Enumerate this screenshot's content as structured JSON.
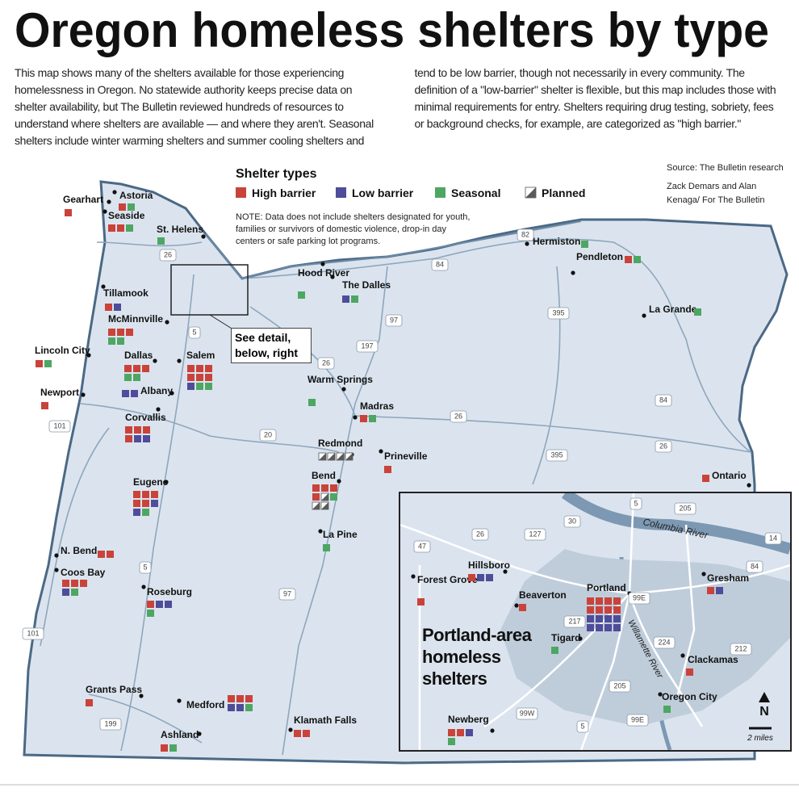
{
  "header": {
    "title": "Oregon homeless shelters by type",
    "intro": "This map shows many of the shelters available for those experiencing homelessness in Oregon. No statewide authority keeps precise data on shelter availability, but The Bulletin reviewed hundreds of resources to understand where shelters are available — and where they aren't. Seasonal shelters include winter warming shelters and summer cooling shelters and tend to be low barrier, though not necessarily in every community. The definition of a \"low-barrier\" shelter is flexible, but this map includes those with minimal requirements for entry. Shelters requiring drug testing, sobriety, fees or background checks, for example, are categorized as \"high barrier.\""
  },
  "source": "Source: The Bulletin research",
  "credit": "Zack Demars and Alan Kenaga/ For The Bulletin",
  "legend": {
    "title": "Shelter types",
    "items": [
      {
        "label": "High barrier",
        "color": "#c9433b"
      },
      {
        "label": "Low barrier",
        "color": "#4f4c9a"
      },
      {
        "label": "Seasonal",
        "color": "#4ea663"
      },
      {
        "label": "Planned",
        "color": "#5a5a5a"
      }
    ],
    "note": "NOTE: Data does not include shelters designated for youth, families or survivors of domestic violence, drop-in day centers or safe parking lot programs."
  },
  "callout": "See detail, below, right",
  "cities": [
    {
      "name": "Gearhart",
      "shelters": [
        "High barrier"
      ]
    },
    {
      "name": "Astoria",
      "shelters": [
        "High barrier",
        "Seasonal"
      ]
    },
    {
      "name": "Seaside",
      "shelters": [
        "High barrier",
        "High barrier",
        "Seasonal"
      ]
    },
    {
      "name": "St. Helens",
      "shelters": [
        "Seasonal"
      ]
    },
    {
      "name": "Tillamook",
      "shelters": [
        "High barrier",
        "Low barrier"
      ]
    },
    {
      "name": "McMinnville",
      "shelters": [
        "High barrier",
        "High barrier",
        "High barrier",
        "Seasonal",
        "Seasonal"
      ]
    },
    {
      "name": "Lincoln City",
      "shelters": [
        "High barrier",
        "Seasonal"
      ]
    },
    {
      "name": "Dallas",
      "shelters": [
        "High barrier",
        "High barrier",
        "High barrier",
        "Seasonal",
        "Seasonal"
      ]
    },
    {
      "name": "Salem",
      "shelters": [
        "High barrier",
        "High barrier",
        "High barrier",
        "High barrier",
        "High barrier",
        "High barrier",
        "Low barrier",
        "Seasonal",
        "Seasonal"
      ]
    },
    {
      "name": "Newport",
      "shelters": [
        "High barrier"
      ]
    },
    {
      "name": "Albany",
      "shelters": [
        "Low barrier",
        "Low barrier"
      ]
    },
    {
      "name": "Corvallis",
      "shelters": [
        "High barrier",
        "High barrier",
        "High barrier",
        "High barrier",
        "Low barrier",
        "Low barrier"
      ]
    },
    {
      "name": "Eugene",
      "shelters": [
        "High barrier",
        "High barrier",
        "High barrier",
        "High barrier",
        "High barrier",
        "Low barrier",
        "Low barrier",
        "Seasonal"
      ]
    },
    {
      "name": "N. Bend",
      "shelters": [
        "High barrier",
        "High barrier"
      ]
    },
    {
      "name": "Coos Bay",
      "shelters": [
        "High barrier",
        "High barrier",
        "High barrier",
        "Low barrier",
        "Seasonal"
      ]
    },
    {
      "name": "Roseburg",
      "shelters": [
        "High barrier",
        "Low barrier",
        "Low barrier",
        "Seasonal"
      ]
    },
    {
      "name": "Grants Pass",
      "shelters": [
        "High barrier"
      ]
    },
    {
      "name": "Medford",
      "shelters": [
        "High barrier",
        "High barrier",
        "High barrier",
        "Low barrier",
        "Low barrier",
        "Seasonal"
      ]
    },
    {
      "name": "Ashland",
      "shelters": [
        "High barrier",
        "Seasonal"
      ]
    },
    {
      "name": "Klamath Falls",
      "shelters": [
        "High barrier",
        "High barrier"
      ]
    },
    {
      "name": "Hood River",
      "shelters": [
        "Seasonal"
      ]
    },
    {
      "name": "The Dalles",
      "shelters": [
        "Low barrier",
        "Seasonal"
      ]
    },
    {
      "name": "Hermiston",
      "shelters": [
        "Seasonal"
      ]
    },
    {
      "name": "Pendleton",
      "shelters": [
        "High barrier",
        "Seasonal"
      ]
    },
    {
      "name": "La Grande",
      "shelters": [
        "Seasonal"
      ]
    },
    {
      "name": "Warm Springs",
      "shelters": [
        "Seasonal"
      ]
    },
    {
      "name": "Madras",
      "shelters": [
        "High barrier",
        "Seasonal"
      ]
    },
    {
      "name": "Redmond",
      "shelters": [
        "Planned",
        "Planned",
        "Planned",
        "Planned"
      ]
    },
    {
      "name": "Bend",
      "shelters": [
        "High barrier",
        "High barrier",
        "High barrier",
        "High barrier",
        "Planned",
        "Seasonal",
        "Planned",
        "Planned"
      ]
    },
    {
      "name": "Prineville",
      "shelters": [
        "High barrier"
      ]
    },
    {
      "name": "La Pine",
      "shelters": [
        "Seasonal"
      ]
    },
    {
      "name": "Ontario",
      "shelters": [
        "High barrier"
      ]
    }
  ],
  "inset": {
    "title": "Portland-area homeless shelters",
    "north": "N",
    "scale": "2 miles",
    "rivers": [
      "Columbia River",
      "Willamette River"
    ],
    "cities": [
      {
        "name": "Forest Grove",
        "shelters": [
          "High barrier"
        ]
      },
      {
        "name": "Hillsboro",
        "shelters": [
          "High barrier",
          "Low barrier",
          "Low barrier"
        ]
      },
      {
        "name": "Beaverton",
        "shelters": [
          "High barrier"
        ]
      },
      {
        "name": "Portland",
        "shelters": [
          "High barrier",
          "High barrier",
          "High barrier",
          "High barrier",
          "High barrier",
          "High barrier",
          "High barrier",
          "High barrier",
          "Low barrier",
          "Low barrier",
          "Low barrier",
          "Low barrier",
          "Low barrier",
          "Low barrier",
          "Low barrier",
          "Low barrier"
        ]
      },
      {
        "name": "Tigard",
        "shelters": [
          "Seasonal"
        ]
      },
      {
        "name": "Gresham",
        "shelters": [
          "High barrier",
          "Low barrier"
        ]
      },
      {
        "name": "Clackamas",
        "shelters": [
          "High barrier"
        ]
      },
      {
        "name": "Oregon City",
        "shelters": [
          "Seasonal"
        ]
      },
      {
        "name": "Newberg",
        "shelters": [
          "High barrier",
          "High barrier",
          "Low barrier",
          "Seasonal"
        ]
      }
    ],
    "highways": [
      "5",
      "205",
      "30",
      "14",
      "84",
      "26",
      "47",
      "127",
      "217",
      "99E",
      "224",
      "212",
      "99W",
      "205",
      "5",
      "99E"
    ]
  },
  "highways": [
    "26",
    "82",
    "84",
    "97",
    "197",
    "26",
    "5",
    "395",
    "395",
    "26",
    "20",
    "101",
    "101",
    "84",
    "26",
    "5",
    "199",
    "97"
  ]
}
